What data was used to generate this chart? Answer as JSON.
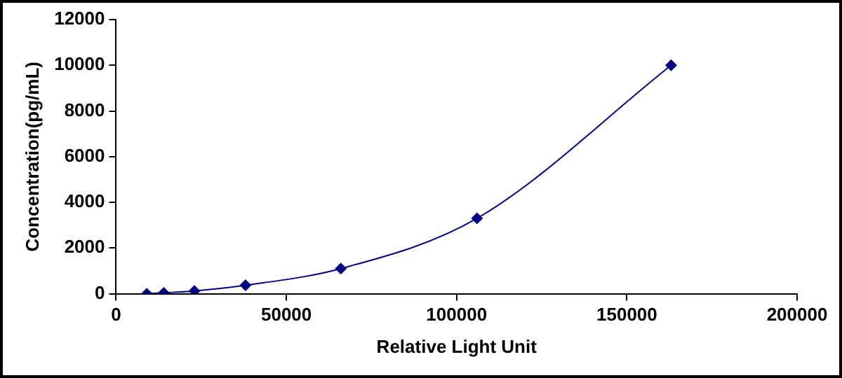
{
  "chart_data": {
    "type": "line",
    "xlabel": "Relative Light Unit",
    "ylabel": "Concentration(pg/mL)",
    "series": [
      {
        "color": "#000080",
        "x": [
          9000,
          14000,
          23000,
          38000,
          66000,
          106000,
          163000
        ],
        "values": [
          0,
          40,
          120,
          370,
          1100,
          3300,
          10000
        ]
      }
    ],
    "xlim": [
      0,
      200000
    ],
    "xticks": [
      0,
      50000,
      100000,
      150000,
      200000
    ],
    "ylim": [
      0,
      12000
    ],
    "yticks": [
      0,
      2000,
      4000,
      6000,
      8000,
      10000,
      12000
    ],
    "grid": false,
    "legend": false,
    "marker": "diamond",
    "line_style": "solid"
  }
}
